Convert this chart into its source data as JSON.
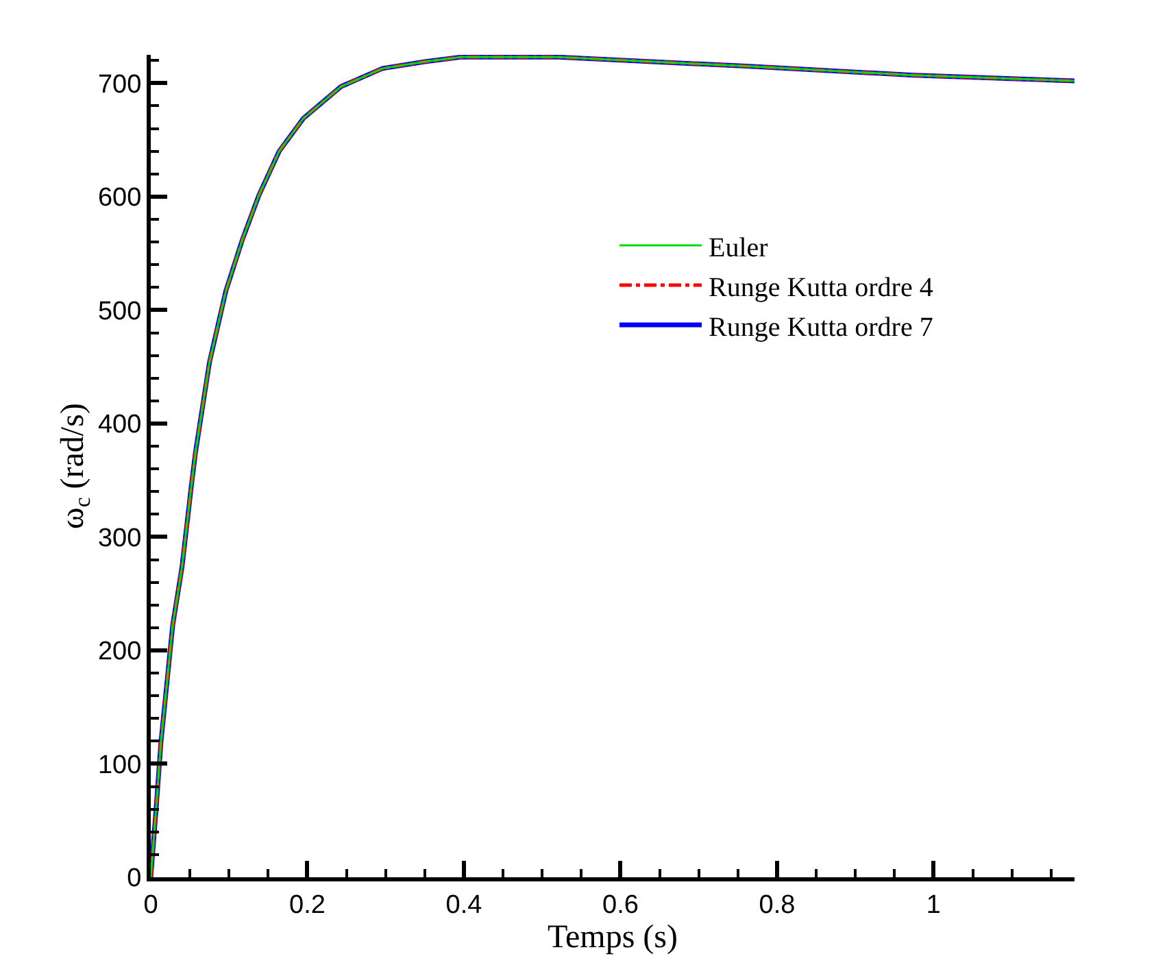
{
  "chart_data": {
    "type": "line",
    "xlabel": "Temps (s)",
    "ylabel": "ω$_{c}$ (rad/s)",
    "x": [
      0,
      0.007,
      0.013,
      0.028,
      0.04,
      0.052,
      0.057,
      0.075,
      0.096,
      0.117,
      0.138,
      0.164,
      0.195,
      0.243,
      0.296,
      0.35,
      0.396,
      0.498,
      0.52,
      0.761,
      0.975,
      1.18
    ],
    "series": [
      {
        "name": "Euler",
        "color": "#00dd00",
        "line_style": "solid",
        "values": [
          0,
          62,
          119,
          222,
          274,
          346,
          374,
          454,
          517,
          562,
          601,
          640,
          669,
          697,
          713,
          719,
          723,
          723,
          723,
          715,
          707,
          702
        ]
      },
      {
        "name": "Runge Kutta ordre 4",
        "color": "#ff0000",
        "line_style": "dashdot",
        "values": [
          0,
          62,
          119,
          222,
          274,
          346,
          374,
          454,
          517,
          562,
          601,
          640,
          669,
          697,
          713,
          719,
          723,
          723,
          723,
          715,
          707,
          702
        ]
      },
      {
        "name": "Runge Kutta ordre 7",
        "color": "#0000ff",
        "line_style": "solid",
        "values": [
          0,
          62,
          119,
          222,
          274,
          346,
          374,
          454,
          517,
          562,
          601,
          640,
          669,
          697,
          713,
          719,
          723,
          723,
          723,
          715,
          707,
          702
        ]
      }
    ],
    "xlim": [
      0,
      1.18
    ],
    "ylim": [
      0,
      725
    ],
    "xticks": [
      0,
      {
        "value": 0.05,
        "label": null
      },
      {
        "value": 0.1,
        "label": null
      },
      {
        "value": 0.15,
        "label": null
      },
      0.2,
      {
        "value": 0.25,
        "label": null
      },
      {
        "value": 0.3,
        "label": null
      },
      {
        "value": 0.35,
        "label": null
      },
      0.4,
      {
        "value": 0.45,
        "label": null
      },
      {
        "value": 0.5,
        "label": null
      },
      {
        "value": 0.55,
        "label": null
      },
      0.6,
      {
        "value": 0.65,
        "label": null
      },
      {
        "value": 0.7,
        "label": null
      },
      {
        "value": 0.75,
        "label": null
      },
      0.8,
      {
        "value": 0.85,
        "label": null
      },
      {
        "value": 0.9,
        "label": null
      },
      {
        "value": 0.95,
        "label": null
      },
      1,
      {
        "value": 1.05,
        "label": null
      },
      {
        "value": 1.1,
        "label": null
      },
      {
        "value": 1.15,
        "label": null
      }
    ],
    "yticks": [
      0,
      {
        "value": 20,
        "label": null
      },
      {
        "value": 40,
        "label": null
      },
      {
        "value": 60,
        "label": null
      },
      {
        "value": 80,
        "label": null
      },
      100,
      {
        "value": 120,
        "label": null
      },
      {
        "value": 140,
        "label": null
      },
      {
        "value": 160,
        "label": null
      },
      {
        "value": 180,
        "label": null
      },
      200,
      {
        "value": 220,
        "label": null
      },
      {
        "value": 240,
        "label": null
      },
      {
        "value": 260,
        "label": null
      },
      {
        "value": 280,
        "label": null
      },
      300,
      {
        "value": 320,
        "label": null
      },
      {
        "value": 340,
        "label": null
      },
      {
        "value": 360,
        "label": null
      },
      {
        "value": 380,
        "label": null
      },
      400,
      {
        "value": 420,
        "label": null
      },
      {
        "value": 440,
        "label": null
      },
      {
        "value": 460,
        "label": null
      },
      {
        "value": 480,
        "label": null
      },
      500,
      {
        "value": 520,
        "label": null
      },
      {
        "value": 540,
        "label": null
      },
      {
        "value": 560,
        "label": null
      },
      {
        "value": 580,
        "label": null
      },
      600,
      {
        "value": 620,
        "label": null
      },
      {
        "value": 640,
        "label": null
      },
      {
        "value": 660,
        "label": null
      },
      {
        "value": 680,
        "label": null
      },
      700,
      {
        "value": 720,
        "label": null
      }
    ],
    "legend": "right",
    "marker": "none"
  }
}
